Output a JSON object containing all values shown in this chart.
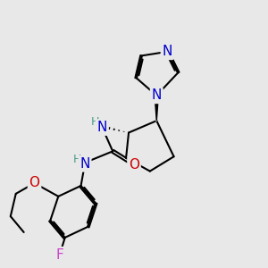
{
  "background_color": "#e8e8e8",
  "atom_colors": {
    "N": "#0000cc",
    "O": "#cc0000",
    "F": "#cc44cc",
    "H": "#4a9a8a"
  },
  "bond_width": 1.5,
  "font_size_atom": 11,
  "font_size_h": 9
}
